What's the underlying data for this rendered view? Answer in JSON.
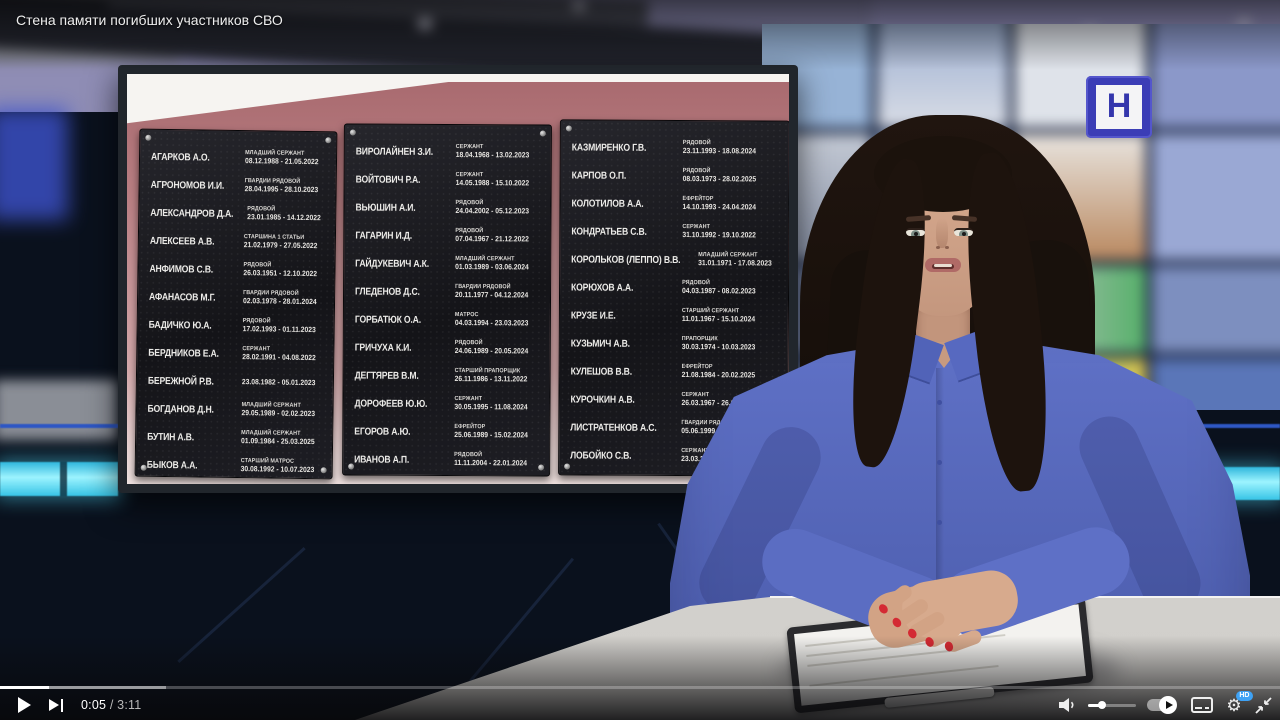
{
  "video": {
    "title": "Стена памяти погибших участников СВО",
    "channel_logo_letter": "Н"
  },
  "player": {
    "current_time": "0:05",
    "separator": " / ",
    "duration": "3:11",
    "progress_percent": 3.8,
    "buffered_percent": 13,
    "volume_percent": 27,
    "settings_badge": "HD",
    "icons": {
      "play": "play-triangle",
      "next": "next-track",
      "volume": "speaker",
      "autoplay": "autoplay-toggle",
      "subtitles": "subtitles-box",
      "settings": "gear",
      "size": "compress-arrows"
    }
  },
  "colors": {
    "accent_blue": "#3ea2f5",
    "led_cyan": "#9df4ff",
    "shirt_blue": "#5f71c6",
    "logo_blue": "#3b3db6",
    "nail_red": "#d42a33"
  },
  "memorial": {
    "plaques": [
      {
        "entries": [
          {
            "name": "Агарков А.О.",
            "rank": "МЛАДШИЙ СЕРЖАНТ",
            "dates": "08.12.1988 - 21.05.2022"
          },
          {
            "name": "Агрономов И.И.",
            "rank": "ГВАРДИИ РЯДОВОЙ",
            "dates": "28.04.1995 - 28.10.2023"
          },
          {
            "name": "Александров Д.А.",
            "rank": "РЯДОВОЙ",
            "dates": "23.01.1985 - 14.12.2022"
          },
          {
            "name": "Алексеев А.В.",
            "rank": "СТАРШИНА 1 СТАТЬИ",
            "dates": "21.02.1979 - 27.05.2022"
          },
          {
            "name": "Анфимов С.В.",
            "rank": "РЯДОВОЙ",
            "dates": "26.03.1951 - 12.10.2022"
          },
          {
            "name": "Афанасов М.Г.",
            "rank": "ГВАРДИИ РЯДОВОЙ",
            "dates": "02.03.1978 - 28.01.2024"
          },
          {
            "name": "Бадичко Ю.А.",
            "rank": "РЯДОВОЙ",
            "dates": "17.02.1993 - 01.11.2023"
          },
          {
            "name": "Бердников Е.А.",
            "rank": "СЕРЖАНТ",
            "dates": "28.02.1991 - 04.08.2022"
          },
          {
            "name": "Бережной Р.В.",
            "rank": "",
            "dates": "23.08.1982 - 05.01.2023"
          },
          {
            "name": "Богданов Д.Н.",
            "rank": "МЛАДШИЙ СЕРЖАНТ",
            "dates": "29.05.1989 - 02.02.2023"
          },
          {
            "name": "Бутин А.В.",
            "rank": "МЛАДШИЙ СЕРЖАНТ",
            "dates": "01.09.1984 - 25.03.2025"
          },
          {
            "name": "Быков А.А.",
            "rank": "СТАРШИЙ МАТРОС",
            "dates": "30.08.1992 - 10.07.2023"
          }
        ]
      },
      {
        "entries": [
          {
            "name": "Виролайнен З.И.",
            "rank": "СЕРЖАНТ",
            "dates": "18.04.1968 - 13.02.2023"
          },
          {
            "name": "Войтович Р.А.",
            "rank": "СЕРЖАНТ",
            "dates": "14.05.1988 - 15.10.2022"
          },
          {
            "name": "Вьюшин А.И.",
            "rank": "РЯДОВОЙ",
            "dates": "24.04.2002 - 05.12.2023"
          },
          {
            "name": "Гагарин И.Д.",
            "rank": "РЯДОВОЙ",
            "dates": "07.04.1967 - 21.12.2022"
          },
          {
            "name": "Гайдукевич А.К.",
            "rank": "МЛАДШИЙ СЕРЖАНТ",
            "dates": "01.03.1989 - 03.06.2024"
          },
          {
            "name": "Гледенов Д.С.",
            "rank": "ГВАРДИИ РЯДОВОЙ",
            "dates": "20.11.1977 - 04.12.2024"
          },
          {
            "name": "Горбатюк О.А.",
            "rank": "МАТРОС",
            "dates": "04.03.1994 - 23.03.2023"
          },
          {
            "name": "Гричуха К.И.",
            "rank": "РЯДОВОЙ",
            "dates": "24.06.1989 - 20.05.2024"
          },
          {
            "name": "Дегтярев В.М.",
            "rank": "СТАРШИЙ ПРАПОРЩИК",
            "dates": "26.11.1986 - 13.11.2022"
          },
          {
            "name": "Дорофеев Ю.Ю.",
            "rank": "СЕРЖАНТ",
            "dates": "30.05.1995 - 11.08.2024"
          },
          {
            "name": "Егоров А.Ю.",
            "rank": "ЕФРЕЙТОР",
            "dates": "25.06.1989 - 15.02.2024"
          },
          {
            "name": "Иванов А.П.",
            "rank": "РЯДОВОЙ",
            "dates": "11.11.2004 - 22.01.2024"
          }
        ]
      },
      {
        "entries": [
          {
            "name": "Казмиренко Г.В.",
            "rank": "РЯДОВОЙ",
            "dates": "23.11.1993 - 18.08.2024"
          },
          {
            "name": "Карпов О.П.",
            "rank": "РЯДОВОЙ",
            "dates": "08.03.1973 - 28.02.2025"
          },
          {
            "name": "Колотилов А.А.",
            "rank": "ЕФРЕЙТОР",
            "dates": "14.10.1993 - 24.04.2024"
          },
          {
            "name": "Кондратьев С.В.",
            "rank": "СЕРЖАНТ",
            "dates": "31.10.1992 - 19.10.2022"
          },
          {
            "name": "Корольков (Леппо) В.В.",
            "rank": "МЛАДШИЙ СЕРЖАНТ",
            "dates": "31.01.1971 - 17.08.2023"
          },
          {
            "name": "Корюхов А.А.",
            "rank": "РЯДОВОЙ",
            "dates": "04.03.1987 - 08.02.2023"
          },
          {
            "name": "Крузе И.Е.",
            "rank": "СТАРШИЙ СЕРЖАНТ",
            "dates": "11.01.1967 - 15.10.2024"
          },
          {
            "name": "Кузьмич А.В.",
            "rank": "ПРАПОРЩИК",
            "dates": "30.03.1974 - 10.03.2023"
          },
          {
            "name": "Кулешов В.В.",
            "rank": "ЕФРЕЙТОР",
            "dates": "21.08.1984 - 20.02.2025"
          },
          {
            "name": "Курочкин А.В.",
            "rank": "СЕРЖАНТ",
            "dates": "26.03.1967 - 26.10.2"
          },
          {
            "name": "Листратенков А.С.",
            "rank": "ГВАРДИИ РЯДОВОЙ",
            "dates": "05.06.1999 - 05.04"
          },
          {
            "name": "Лобойко С.В.",
            "rank": "СЕРЖАНТ",
            "dates": "23.03.1976 - 26.0"
          }
        ]
      }
    ]
  }
}
